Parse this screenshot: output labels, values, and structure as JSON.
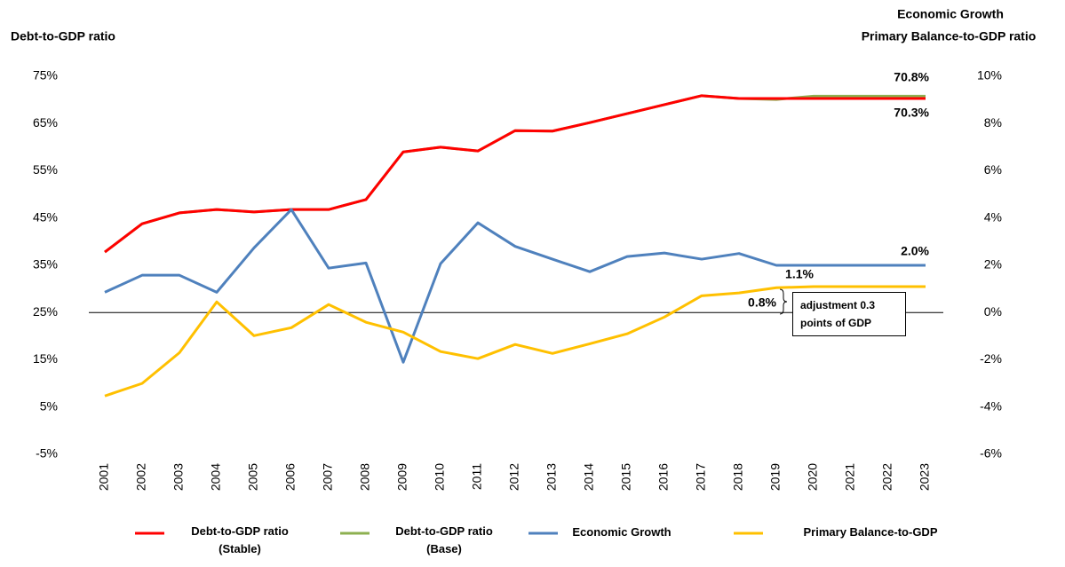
{
  "chart_data": {
    "type": "line",
    "left_axis_title": "Debt-to-GDP ratio",
    "right_axis_title": [
      "Economic Growth",
      "Primary Balance-to-GDP ratio"
    ],
    "categories": [
      "2001",
      "2002",
      "2003",
      "2004",
      "2005",
      "2006",
      "2007",
      "2008",
      "2009",
      "2010",
      "2011",
      "2012",
      "2013",
      "2014",
      "2015",
      "2016",
      "2017",
      "2018",
      "2019",
      "2020",
      "2021",
      "2022",
      "2023"
    ],
    "ylim": [
      -5,
      75
    ],
    "yticks": [
      {
        "value": -5,
        "label": "-5%"
      },
      {
        "value": 5,
        "label": "5%"
      },
      {
        "value": 15,
        "label": "15%"
      },
      {
        "value": 25,
        "label": "25%"
      },
      {
        "value": 35,
        "label": "35%"
      },
      {
        "value": 45,
        "label": "45%"
      },
      {
        "value": 55,
        "label": "55%"
      },
      {
        "value": 65,
        "label": "65%"
      },
      {
        "value": 75,
        "label": "75%"
      }
    ],
    "y2lim": [
      -6,
      10
    ],
    "y2ticks": [
      {
        "value": -6,
        "label": "-6%"
      },
      {
        "value": -4,
        "label": "-4%"
      },
      {
        "value": -2,
        "label": "-2%"
      },
      {
        "value": 0,
        "label": "0%"
      },
      {
        "value": 2,
        "label": "2%"
      },
      {
        "value": 4,
        "label": "4%"
      },
      {
        "value": 6,
        "label": "6%"
      },
      {
        "value": 8,
        "label": "8%"
      },
      {
        "value": 10,
        "label": "10%"
      }
    ],
    "zero_line_y2": true,
    "series": [
      {
        "name": "Debt-to-GDP ratio (Stable)",
        "color": "#ff0000",
        "values": [
          37.8,
          43.8,
          46.1,
          46.8,
          46.3,
          46.8,
          46.8,
          48.9,
          59.0,
          60.0,
          59.2,
          63.5,
          63.4,
          65.2,
          67.1,
          69.0,
          70.9,
          70.3,
          70.3,
          70.3,
          70.3,
          70.3,
          70.3
        ]
      },
      {
        "name": "Debt-to-GDP ratio (Base)",
        "color": "#8db050",
        "values": [
          37.8,
          43.8,
          46.1,
          46.8,
          46.3,
          46.8,
          46.8,
          48.9,
          59.0,
          60.0,
          59.2,
          63.5,
          63.4,
          65.2,
          67.1,
          69.0,
          70.9,
          70.3,
          70.1,
          70.8,
          70.8,
          70.8,
          70.8
        ]
      },
      {
        "name": "Economic Growth",
        "color": "#4f81bd",
        "axis": "y2",
        "values": [
          0.86,
          1.58,
          1.58,
          0.86,
          2.74,
          4.36,
          1.88,
          2.1,
          -2.1,
          2.07,
          3.8,
          2.8,
          2.26,
          1.73,
          2.37,
          2.52,
          2.26,
          2.5,
          2.0,
          2.0,
          2.0,
          2.0,
          2.0
        ]
      },
      {
        "name": "Primary Balance-to-GDP",
        "color": "#ffc000",
        "axis": "y2",
        "values": [
          -3.53,
          -3.0,
          -1.7,
          0.45,
          -0.98,
          -0.64,
          0.34,
          -0.41,
          -0.83,
          -1.65,
          -1.95,
          -1.35,
          -1.73,
          -1.32,
          -0.9,
          -0.19,
          0.71,
          0.83,
          1.05,
          1.1,
          1.1,
          1.1,
          1.1
        ]
      }
    ],
    "annotations": [
      {
        "text": "70.8%",
        "color": "#77933c"
      },
      {
        "text": "70.3%",
        "color": "#ff0000"
      },
      {
        "text": "2.0%",
        "color": "#4f81bd"
      },
      {
        "text": "1.1%",
        "color": "#d4a017"
      },
      {
        "text": "0.8%",
        "color": "#d4a017"
      },
      {
        "text": "adjustment 0.3 points of GDP",
        "color": "#000000"
      }
    ]
  }
}
